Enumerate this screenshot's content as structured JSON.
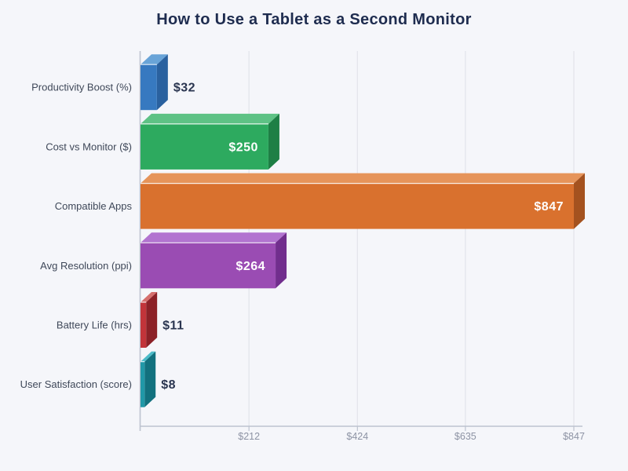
{
  "title": "How to Use a Tablet as a Second Monitor",
  "chart_data": {
    "type": "bar",
    "orientation": "horizontal",
    "style": "3d-extruded",
    "title": "How to Use a Tablet as a Second Monitor",
    "categories": [
      "Productivity Boost (%)",
      "Cost vs Monitor ($)",
      "Compatible Apps",
      "Avg Resolution (ppi)",
      "Battery Life (hrs)",
      "User Satisfaction (score)"
    ],
    "values": [
      32,
      250,
      847,
      264,
      11,
      8
    ],
    "value_labels": [
      "$32",
      "$250",
      "$847",
      "$264",
      "$11",
      "$8"
    ],
    "label_placement": [
      "outside",
      "inside",
      "inside",
      "inside",
      "outside",
      "outside"
    ],
    "series_colors": [
      {
        "front": "#3779c0",
        "top": "#69a4d8",
        "side": "#2a619f"
      },
      {
        "front": "#2daa5f",
        "top": "#5ec285",
        "side": "#1e7f45"
      },
      {
        "front": "#d9712e",
        "top": "#e6945a",
        "side": "#a4521f"
      },
      {
        "front": "#9a4cb3",
        "top": "#b274d0",
        "side": "#712e8d"
      },
      {
        "front": "#c2343a",
        "top": "#d56f6d",
        "side": "#8c2127"
      },
      {
        "front": "#2098a7",
        "top": "#4dbcc9",
        "side": "#12717e"
      }
    ],
    "xlabel": "",
    "ylabel": "",
    "xlim": [
      0,
      847
    ],
    "x_ticks": [
      {
        "value": 212,
        "label": "$212"
      },
      {
        "value": 424,
        "label": "$424"
      },
      {
        "value": 635,
        "label": "$635"
      },
      {
        "value": 847,
        "label": "$847"
      }
    ],
    "grid": true,
    "legend": false,
    "colors": {
      "background": "#f5f6fa",
      "grid": "#e3e5ec",
      "axis": "#bdc3cf",
      "tick_text": "#8d93a4",
      "category_text": "#3f4859",
      "title_text": "#1e2c4f",
      "value_outside_text": "#2a3550",
      "value_inside_text": "#ffffff"
    }
  }
}
